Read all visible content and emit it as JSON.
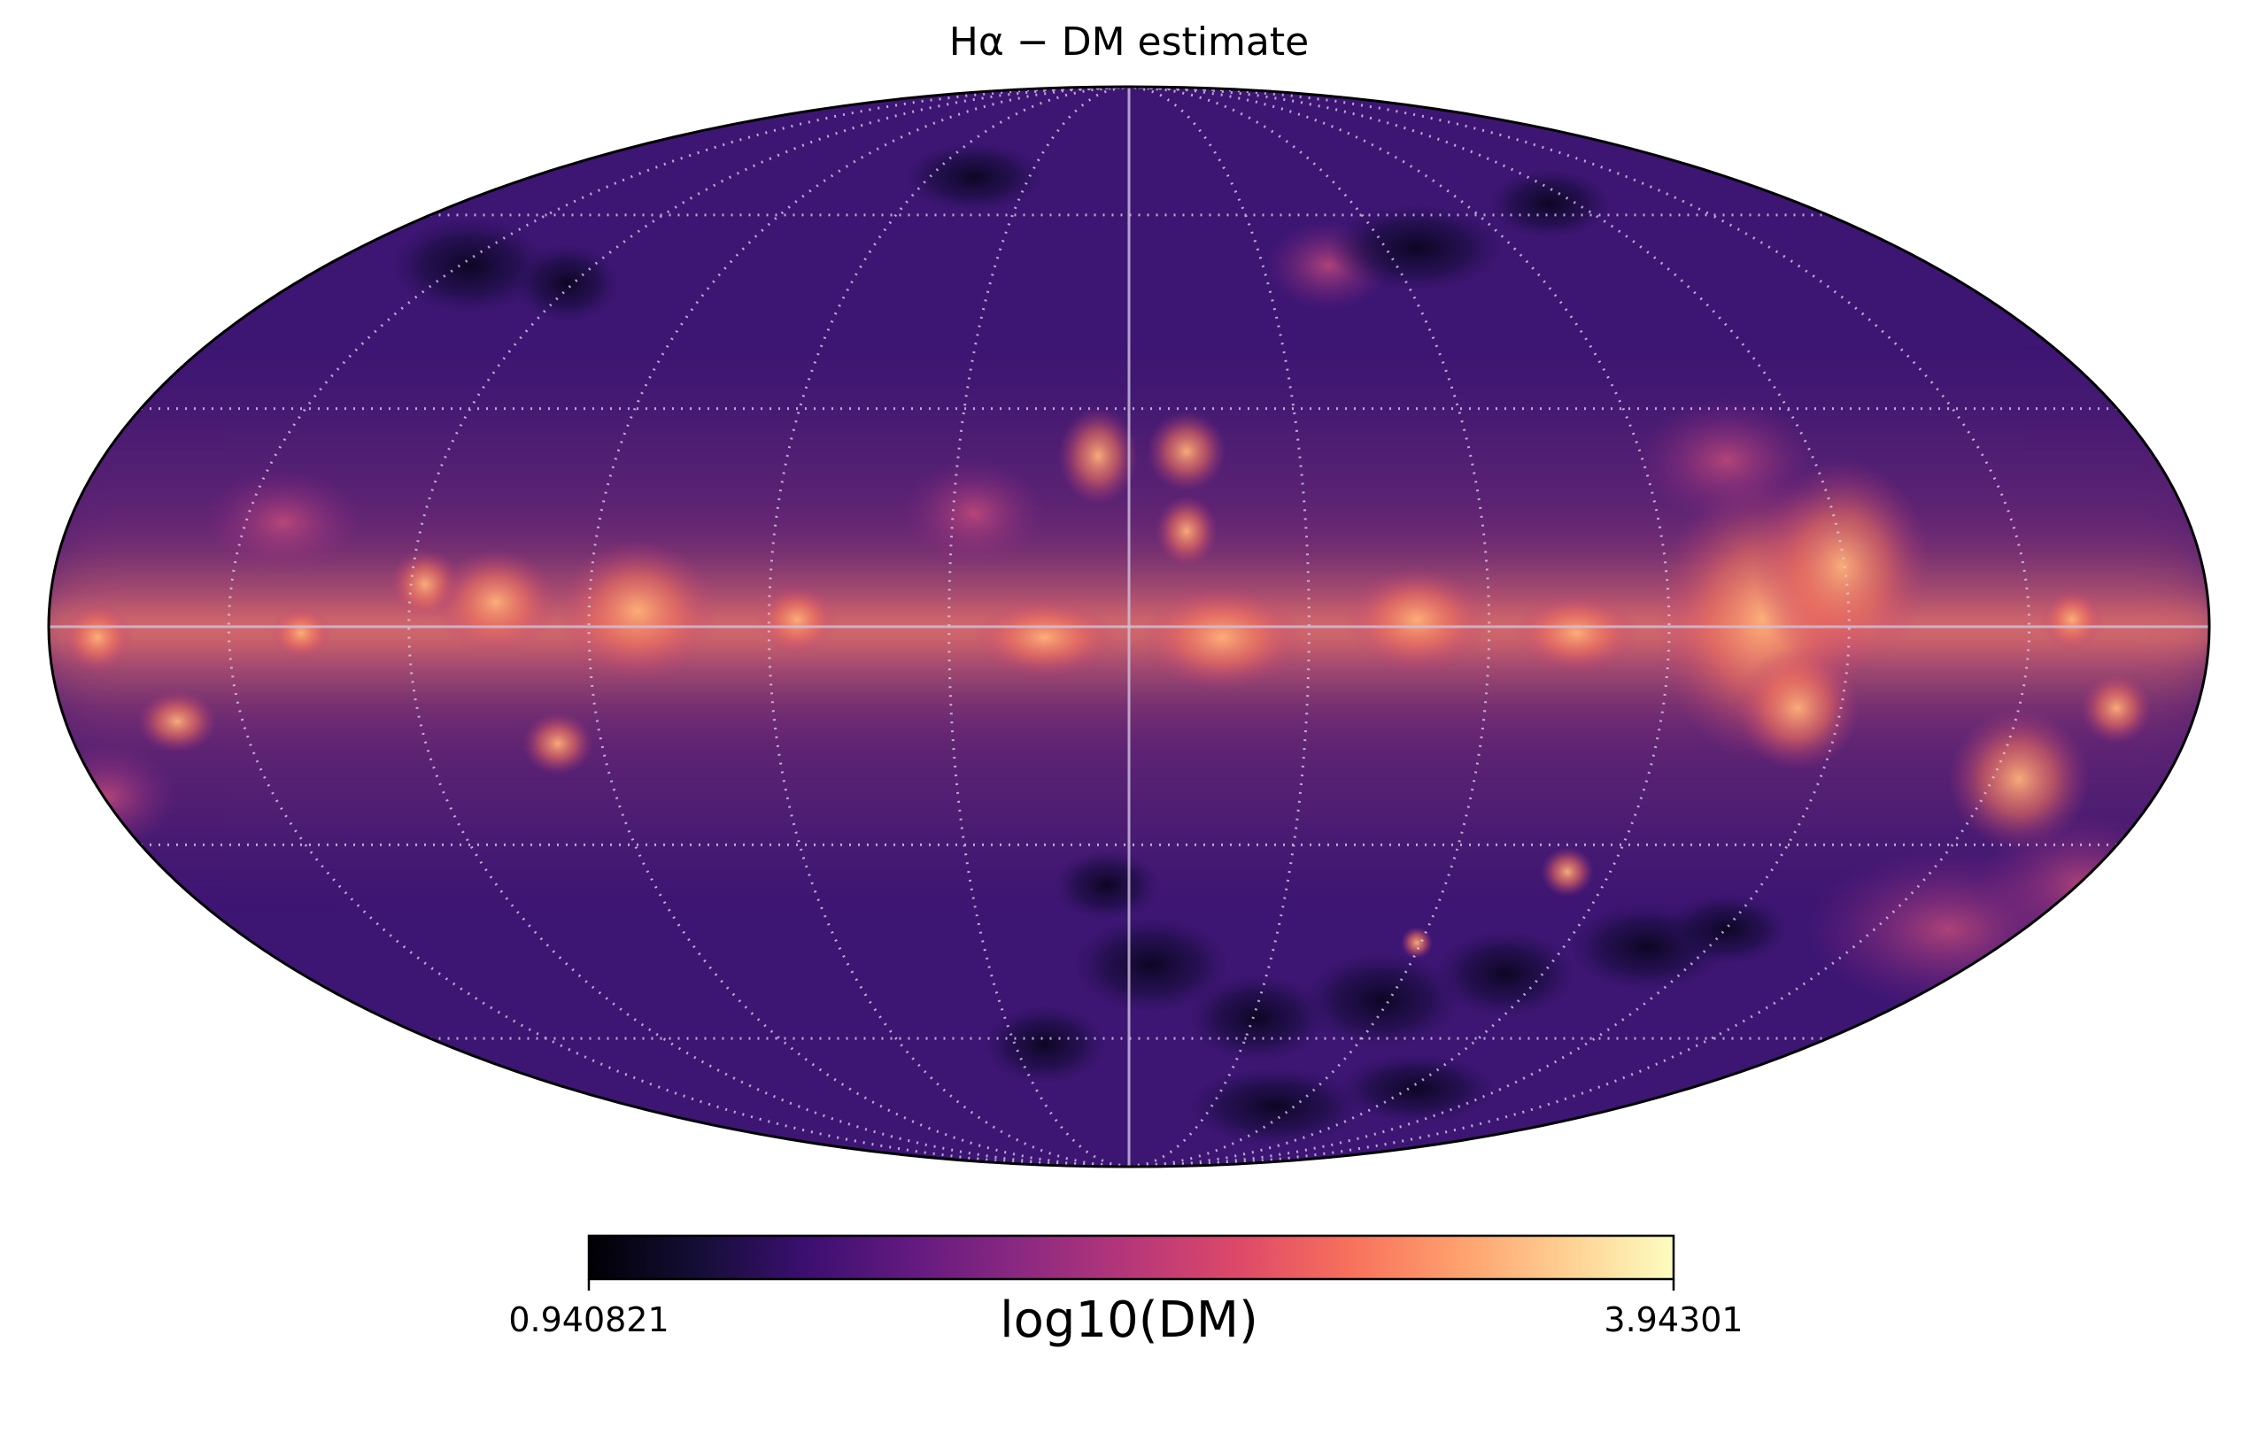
{
  "chart_data": {
    "type": "heatmap",
    "projection": "Mollweide all-sky map",
    "title": "Hα − DM estimate",
    "colormap": "magma",
    "colorbar": {
      "label": "log10(DM)",
      "min_label": "0.940821",
      "max_label": "3.94301",
      "min": 0.940821,
      "max": 3.94301,
      "orientation": "horizontal",
      "placement": "bottom"
    },
    "graticule": {
      "visible": true,
      "style": "dotted",
      "meridian_step_deg": 30,
      "parallel_step_deg": 30
    },
    "colors": {
      "background_map": "#3a1470",
      "band_bright": "#f07a62",
      "band_peak": "#ffbe86",
      "dark_patch": "#0b0722",
      "graticule": "#d9cfe6",
      "outline": "#000000"
    }
  }
}
